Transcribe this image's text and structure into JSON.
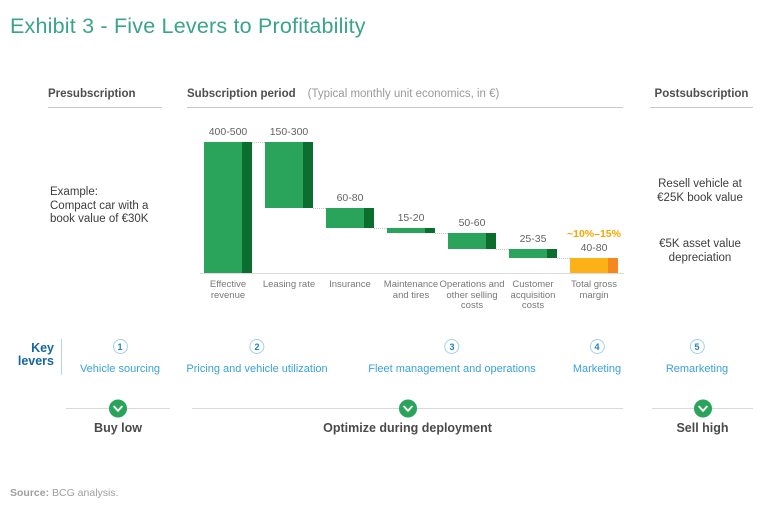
{
  "title": "Exhibit 3 - Five Levers to Profitability",
  "columns": {
    "pre": {
      "label": "Presubscription"
    },
    "sub": {
      "label": "Subscription period",
      "subtitle": "(Typical monthly unit economics, in €)"
    },
    "post": {
      "label": "Postsubscription"
    }
  },
  "example_note": [
    "Example:",
    "Compact car with a",
    "book value of €30K"
  ],
  "post_notes": {
    "resell": [
      "Resell vehicle at",
      "€25K book value"
    ],
    "depreciation": [
      "€5K asset value",
      "depreciation"
    ]
  },
  "chart_data": {
    "type": "waterfall",
    "subtitle": "(Typical monthly unit economics, in €)",
    "bars": [
      {
        "name": "Effective revenue",
        "value_label": "400-500",
        "range": [
          400,
          500
        ],
        "kind": "start",
        "color": "green"
      },
      {
        "name": "Leasing rate",
        "value_label": "150-300",
        "range": [
          150,
          300
        ],
        "kind": "decrease",
        "color": "green"
      },
      {
        "name": "Insurance",
        "value_label": "60-80",
        "range": [
          60,
          80
        ],
        "kind": "decrease",
        "color": "green"
      },
      {
        "name": "Maintenance and tires",
        "value_label": "15-20",
        "range": [
          15,
          20
        ],
        "kind": "decrease",
        "color": "green"
      },
      {
        "name": "Operations and other selling costs",
        "value_label": "50-60",
        "range": [
          50,
          60
        ],
        "kind": "decrease",
        "color": "green"
      },
      {
        "name": "Customer acquisition costs",
        "value_label": "25-35",
        "range": [
          25,
          35
        ],
        "kind": "decrease",
        "color": "green"
      },
      {
        "name": "Total gross margin",
        "value_label": "40-80",
        "range": [
          40,
          80
        ],
        "kind": "total",
        "color": "amber",
        "annotation": "~10%–15%"
      }
    ]
  },
  "key_levers": {
    "title_line1": "Key",
    "title_line2": "levers",
    "items": [
      {
        "num": "1",
        "label": "Vehicle sourcing"
      },
      {
        "num": "2",
        "label": "Pricing and vehicle utilization"
      },
      {
        "num": "3",
        "label": "Fleet management and operations"
      },
      {
        "num": "4",
        "label": "Marketing"
      },
      {
        "num": "5",
        "label": "Remarketing"
      }
    ]
  },
  "phases": [
    {
      "label": "Buy low"
    },
    {
      "label": "Optimize during deployment"
    },
    {
      "label": "Sell high"
    }
  ],
  "source": {
    "prefix": "Source:",
    "text": " BCG analysis."
  },
  "palette": {
    "green": "#2aa45a",
    "green_dark": "#0b6e2e",
    "amber": "#fcb216",
    "amber_dark": "#f5871f",
    "annotation_amber": "#f7a600",
    "title_teal": "#3aa489",
    "lever_blue": "#39a1da",
    "key_levers_blue": "#1566a4",
    "check_green": "#2aa45a"
  }
}
